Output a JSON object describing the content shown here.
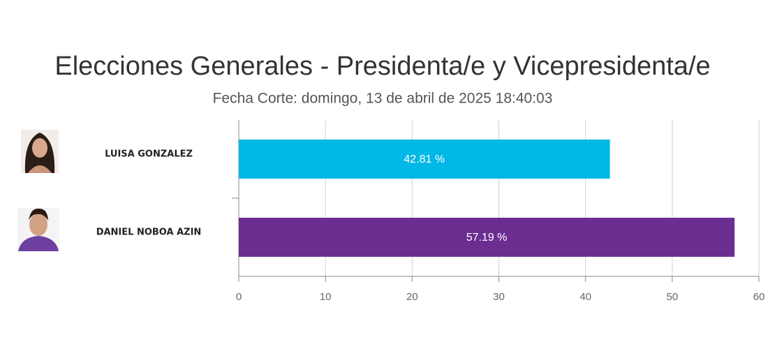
{
  "chart_data": {
    "type": "bar",
    "orientation": "horizontal",
    "title": "Elecciones Generales - Presidenta/e y Vicepresidenta/e",
    "subtitle": "Fecha Corte: domingo, 13 de abril de 2025 18:40:03",
    "categories": [
      "LUISA GONZALEZ",
      "DANIEL NOBOA AZIN"
    ],
    "values": [
      42.81,
      57.19
    ],
    "value_labels": [
      "42.81 %",
      "57.19 %"
    ],
    "colors": [
      "#00b8e6",
      "#6c2d91"
    ],
    "xlim": [
      0,
      60
    ],
    "xticks": [
      0,
      10,
      20,
      30,
      40,
      50,
      60
    ],
    "grid": true
  }
}
